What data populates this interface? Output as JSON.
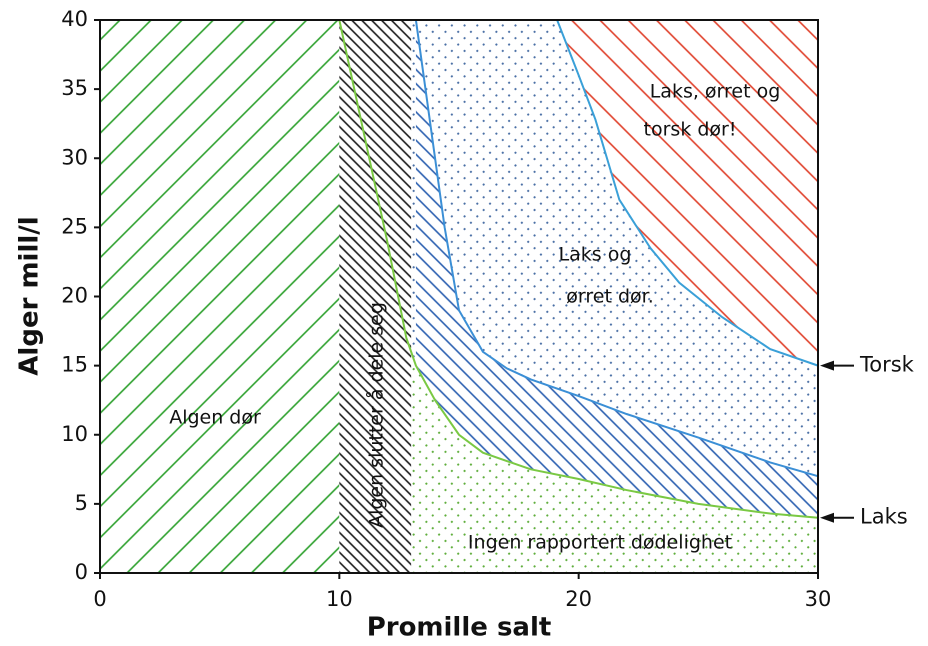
{
  "chart_data": {
    "type": "region",
    "xlabel": "Promille salt",
    "ylabel": "Alger mill/l",
    "xlim": [
      0,
      30
    ],
    "ylim": [
      0,
      40
    ],
    "xticks": [
      0,
      10,
      20,
      30
    ],
    "yticks": [
      0,
      5,
      10,
      15,
      20,
      25,
      30,
      35,
      40
    ],
    "background": {
      "pattern": "dots",
      "color": "#4a6fa5"
    },
    "bands": [
      {
        "x": [
          0,
          10
        ],
        "color": "#2ca02c",
        "pattern": "slash"
      },
      {
        "x": [
          10,
          13
        ],
        "color": "#1a1a1a",
        "pattern": "backslash"
      }
    ],
    "series": [
      {
        "color": "#3b8fd6",
        "fill": "below",
        "pattern": "backslash",
        "pattern_color": "#2a5fb0",
        "x": [
          13.2,
          13.6,
          14,
          14.4,
          15,
          16,
          17,
          18,
          20,
          22,
          25,
          28,
          30
        ],
        "values": [
          40,
          35,
          30,
          25,
          19,
          16,
          14.8,
          14,
          12.8,
          11.5,
          9.8,
          8,
          7
        ]
      },
      {
        "name": "Laks",
        "color": "#7ac943",
        "fill": "below",
        "pattern": "dots",
        "pattern_color": "#5fae3c",
        "x": [
          10,
          11,
          12,
          12.8,
          13.2,
          14,
          15,
          16,
          18,
          20,
          22,
          25,
          28,
          30
        ],
        "values": [
          40,
          32,
          24,
          17,
          15,
          12.5,
          10,
          8.7,
          7.5,
          6.8,
          6,
          5,
          4.3,
          4
        ]
      },
      {
        "name": "Torsk",
        "color": "#3aa0d8",
        "fill": "above",
        "pattern": "backslash",
        "pattern_color": "#e0402a",
        "x": [
          19.1,
          20,
          20.7,
          21.7,
          23,
          24.2,
          26,
          28,
          30
        ],
        "values": [
          40,
          36,
          32.8,
          27,
          23.5,
          21,
          18.5,
          16.2,
          15
        ]
      }
    ],
    "annotations": [
      "Algen dør",
      "Algen slutter å dele seg",
      "Ingen rapportert dødelighet",
      "Laks og",
      "ørret dør.",
      "Laks, ørret og",
      "torsk dør!"
    ]
  }
}
